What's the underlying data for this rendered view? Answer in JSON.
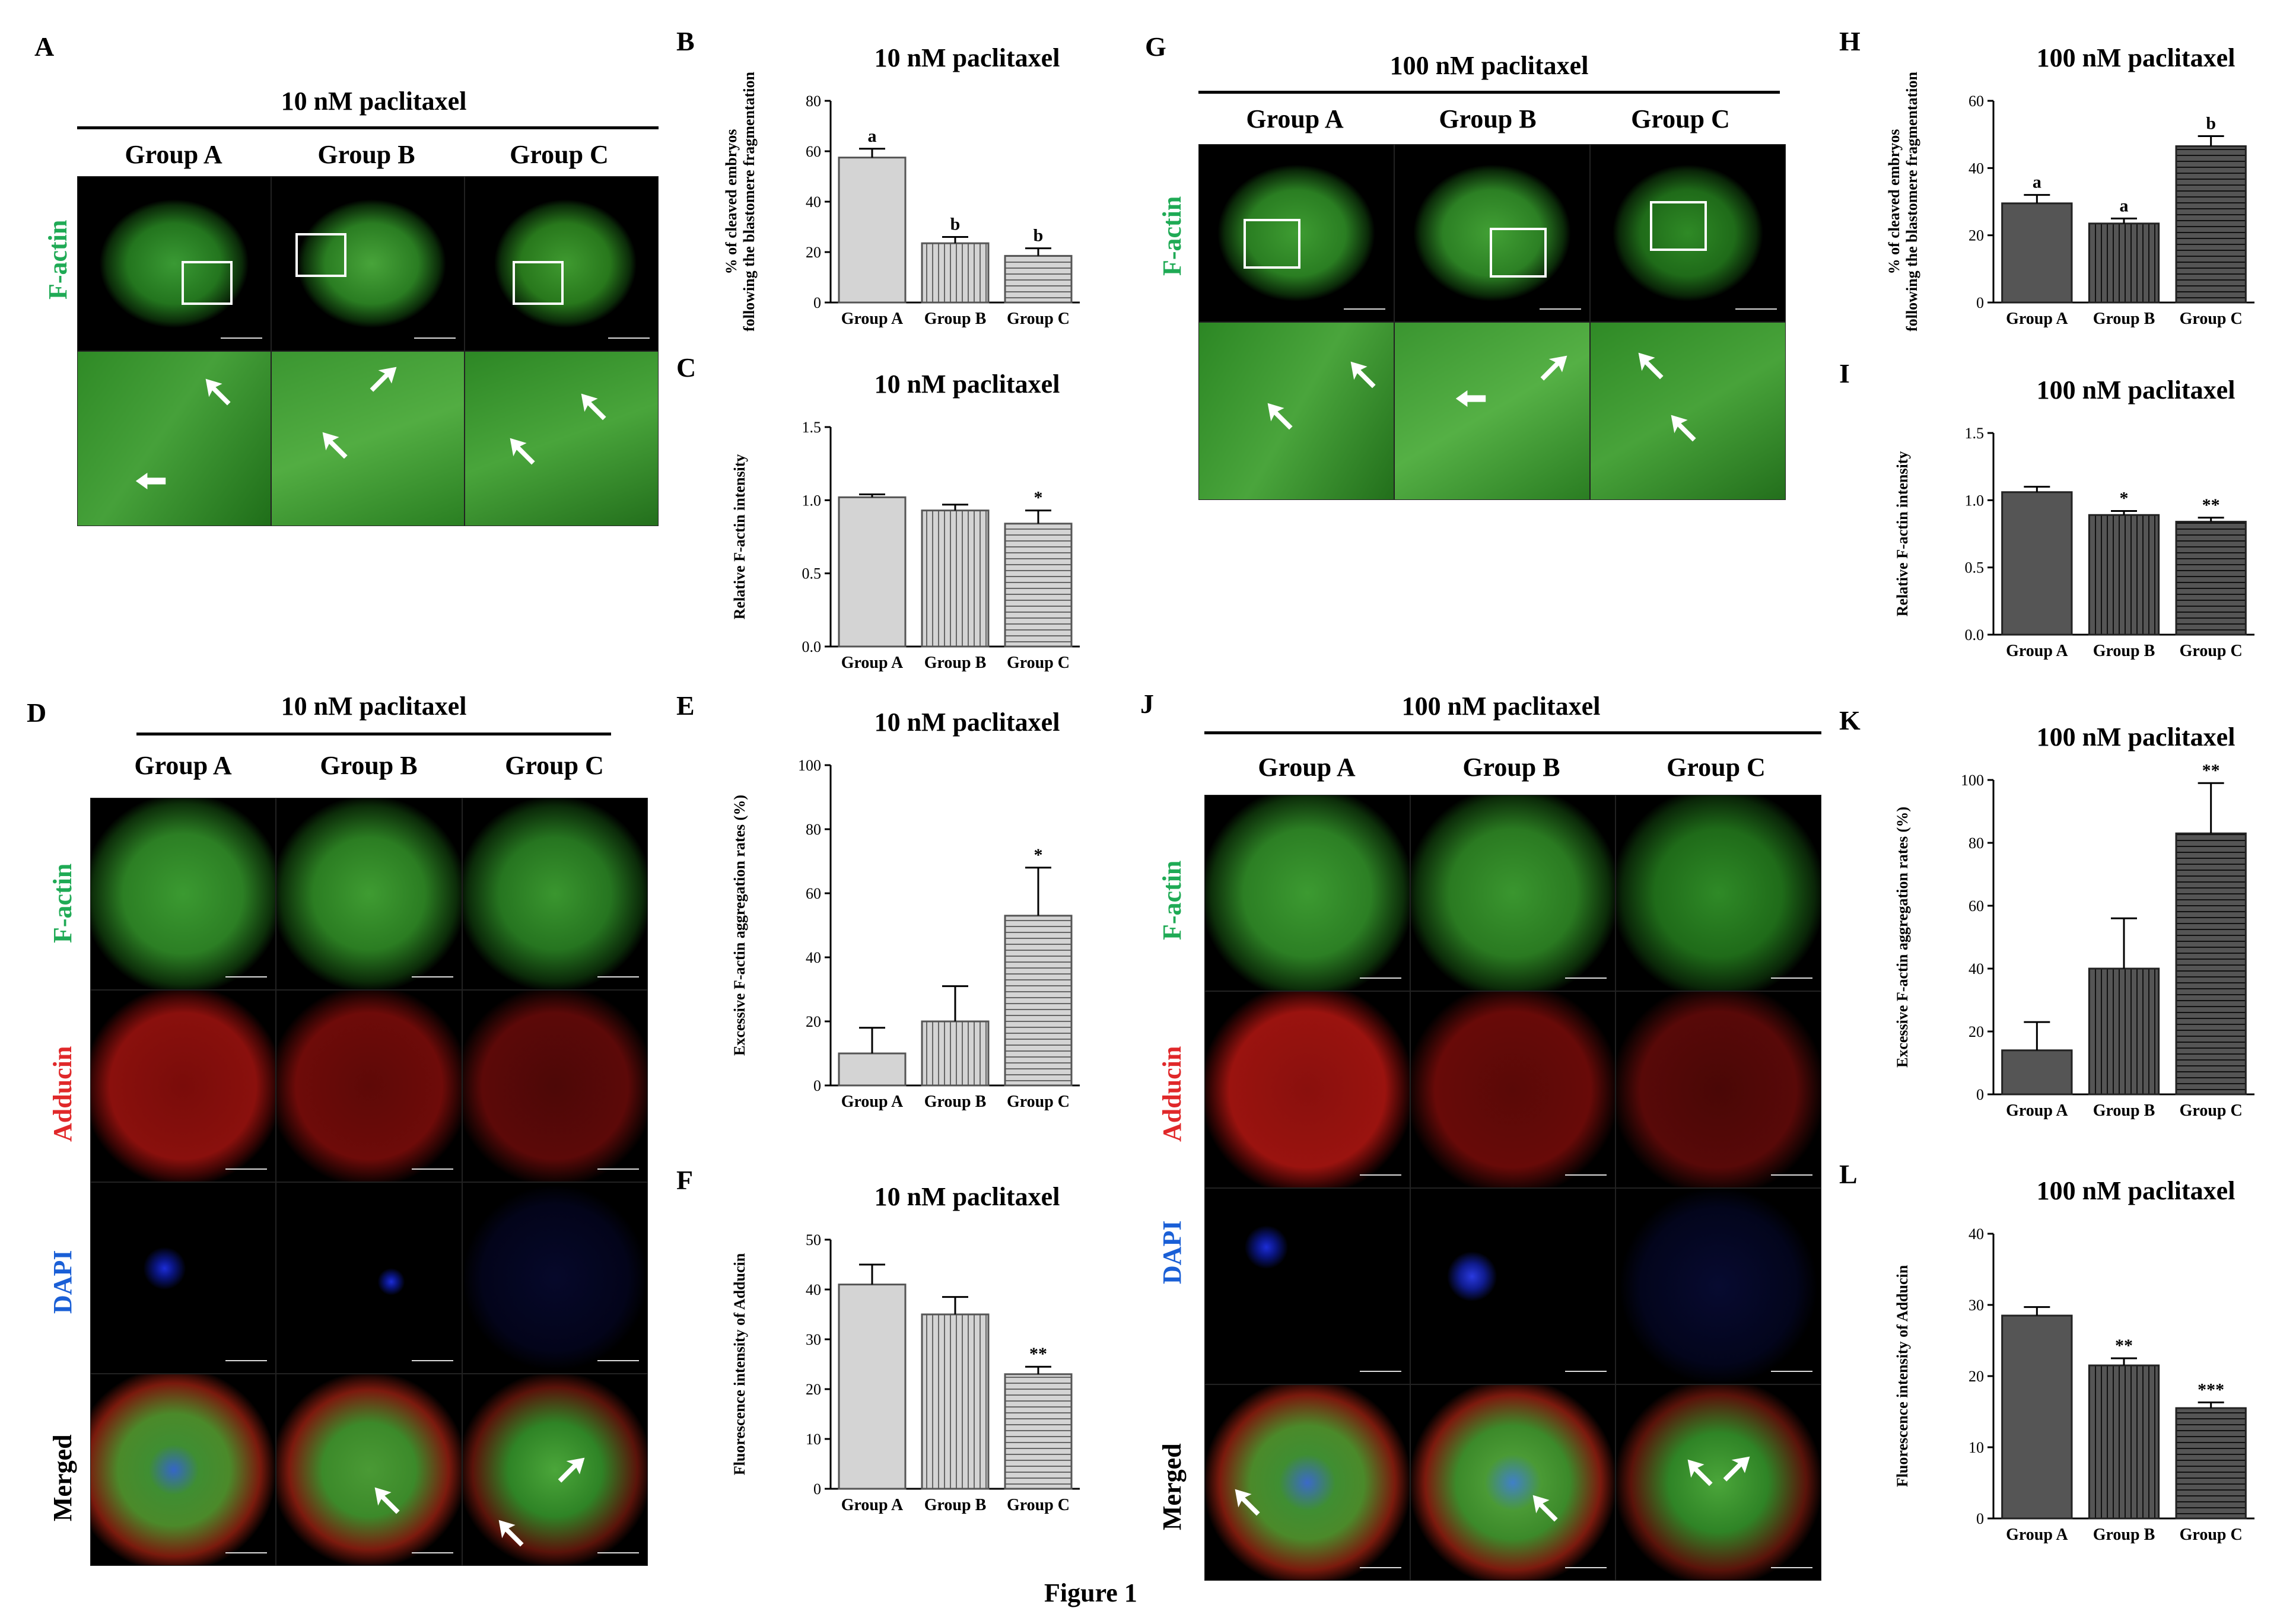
{
  "panels": {
    "A": {
      "letter": "A",
      "title": "10 nM paclitaxel",
      "groups": [
        "Group A",
        "Group B",
        "Group C"
      ],
      "row_label": "F-actin"
    },
    "D": {
      "letter": "D",
      "title": "10 nM paclitaxel",
      "groups": [
        "Group A",
        "Group B",
        "Group C"
      ],
      "row_labels": [
        "F-actin",
        "Adducin",
        "DAPI",
        "Merged"
      ]
    },
    "G": {
      "letter": "G",
      "title": "100 nM paclitaxel",
      "groups": [
        "Group A",
        "Group B",
        "Group C"
      ],
      "row_label": "F-actin"
    },
    "J": {
      "letter": "J",
      "title": "100 nM paclitaxel",
      "groups": [
        "Group A",
        "Group B",
        "Group C"
      ],
      "row_labels": [
        "F-actin",
        "Adducin",
        "DAPI",
        "Merged"
      ]
    }
  },
  "colors": {
    "factin_label": "#1faa55",
    "adducin_label": "#e0282a",
    "dapi_label": "#1a5fd6",
    "light_bar": "#d4d4d4",
    "dark_bar": "#555555"
  },
  "footer_text": "Figure 1",
  "chart_data": [
    {
      "panel": "B",
      "letter": "B",
      "type": "bar",
      "title": "10 nM paclitaxel",
      "ylabel": "% of cleaved embryos following the blastomere fragmentation",
      "categories": [
        "Group A",
        "Group B",
        "Group C"
      ],
      "values": [
        57.5,
        23.5,
        18.5
      ],
      "errors": [
        3.5,
        2.5,
        3
      ],
      "annotations": [
        "a",
        "b",
        "b"
      ],
      "ylim": [
        0,
        80
      ],
      "yticks": [
        "0",
        "20",
        "40",
        "60",
        "80"
      ],
      "patterns": [
        "solid",
        "vertical",
        "horizontal"
      ],
      "theme": "light"
    },
    {
      "panel": "C",
      "letter": "C",
      "type": "bar",
      "title": "10 nM paclitaxel",
      "ylabel": "Relative F-actin intensity",
      "categories": [
        "Group A",
        "Group B",
        "Group C"
      ],
      "values": [
        1.02,
        0.93,
        0.84
      ],
      "errors": [
        0.02,
        0.04,
        0.09
      ],
      "annotations": [
        "",
        "",
        "*"
      ],
      "ylim": [
        0,
        1.5
      ],
      "yticks": [
        "0.0",
        "0.5",
        "1.0",
        "1.5"
      ],
      "patterns": [
        "solid",
        "vertical",
        "horizontal"
      ],
      "theme": "light"
    },
    {
      "panel": "E",
      "letter": "E",
      "type": "bar",
      "title": "10 nM paclitaxel",
      "ylabel": "Excessive F-actin aggregation rates (%)",
      "categories": [
        "Group A",
        "Group B",
        "Group C"
      ],
      "values": [
        10,
        20,
        53
      ],
      "errors": [
        8,
        11,
        15
      ],
      "annotations": [
        "",
        "",
        "*"
      ],
      "ylim": [
        0,
        100
      ],
      "yticks": [
        "0",
        "20",
        "40",
        "60",
        "80",
        "100"
      ],
      "patterns": [
        "solid",
        "vertical",
        "horizontal"
      ],
      "theme": "light"
    },
    {
      "panel": "F",
      "letter": "F",
      "type": "bar",
      "title": "10 nM paclitaxel",
      "ylabel": "Fluorescence intensity of Adducin",
      "categories": [
        "Group A",
        "Group B",
        "Group C"
      ],
      "values": [
        41,
        35,
        23
      ],
      "errors": [
        4,
        3.5,
        1.5
      ],
      "annotations": [
        "",
        "",
        "**"
      ],
      "ylim": [
        0,
        50
      ],
      "yticks": [
        "0",
        "10",
        "20",
        "30",
        "40",
        "50"
      ],
      "patterns": [
        "solid",
        "vertical",
        "horizontal"
      ],
      "theme": "light"
    },
    {
      "panel": "H",
      "letter": "H",
      "type": "bar",
      "title": "100 nM paclitaxel",
      "ylabel": "% of cleaved embryos following the blastomere fragmentation",
      "categories": [
        "Group A",
        "Group B",
        "Group C"
      ],
      "values": [
        29.5,
        23.5,
        46.5
      ],
      "errors": [
        2.5,
        1.5,
        3
      ],
      "annotations": [
        "a",
        "a",
        "b"
      ],
      "ylim": [
        0,
        60
      ],
      "yticks": [
        "0",
        "20",
        "40",
        "60"
      ],
      "patterns": [
        "solid",
        "vertical",
        "horizontal"
      ],
      "theme": "dark"
    },
    {
      "panel": "I",
      "letter": "I",
      "type": "bar",
      "title": "100 nM paclitaxel",
      "ylabel": "Relative F-actin intensity",
      "categories": [
        "Group A",
        "Group B",
        "Group C"
      ],
      "values": [
        1.06,
        0.89,
        0.84
      ],
      "errors": [
        0.04,
        0.03,
        0.03
      ],
      "annotations": [
        "",
        "*",
        "**"
      ],
      "ylim": [
        0,
        1.5
      ],
      "yticks": [
        "0.0",
        "0.5",
        "1.0",
        "1.5"
      ],
      "patterns": [
        "solid",
        "vertical",
        "horizontal"
      ],
      "theme": "dark"
    },
    {
      "panel": "K",
      "letter": "K",
      "type": "bar",
      "title": "100 nM paclitaxel",
      "ylabel": "Excessive F-actin aggregation rates (%)",
      "categories": [
        "Group A",
        "Group B",
        "Group C"
      ],
      "values": [
        14,
        40,
        83
      ],
      "errors": [
        9,
        16,
        16
      ],
      "annotations": [
        "",
        "",
        "**"
      ],
      "ylim": [
        0,
        100
      ],
      "yticks": [
        "0",
        "20",
        "40",
        "60",
        "80",
        "100"
      ],
      "patterns": [
        "solid",
        "vertical",
        "horizontal"
      ],
      "theme": "dark"
    },
    {
      "panel": "L",
      "letter": "L",
      "type": "bar",
      "title": "100 nM paclitaxel",
      "ylabel": "Fluorescence intensity of Adducin",
      "categories": [
        "Group A",
        "Group B",
        "Group C"
      ],
      "values": [
        28.5,
        21.5,
        15.5
      ],
      "errors": [
        1.2,
        1,
        0.8
      ],
      "annotations": [
        "",
        "**",
        "***"
      ],
      "ylim": [
        0,
        40
      ],
      "yticks": [
        "0",
        "10",
        "20",
        "30",
        "40"
      ],
      "patterns": [
        "solid",
        "vertical",
        "horizontal"
      ],
      "theme": "dark"
    }
  ]
}
